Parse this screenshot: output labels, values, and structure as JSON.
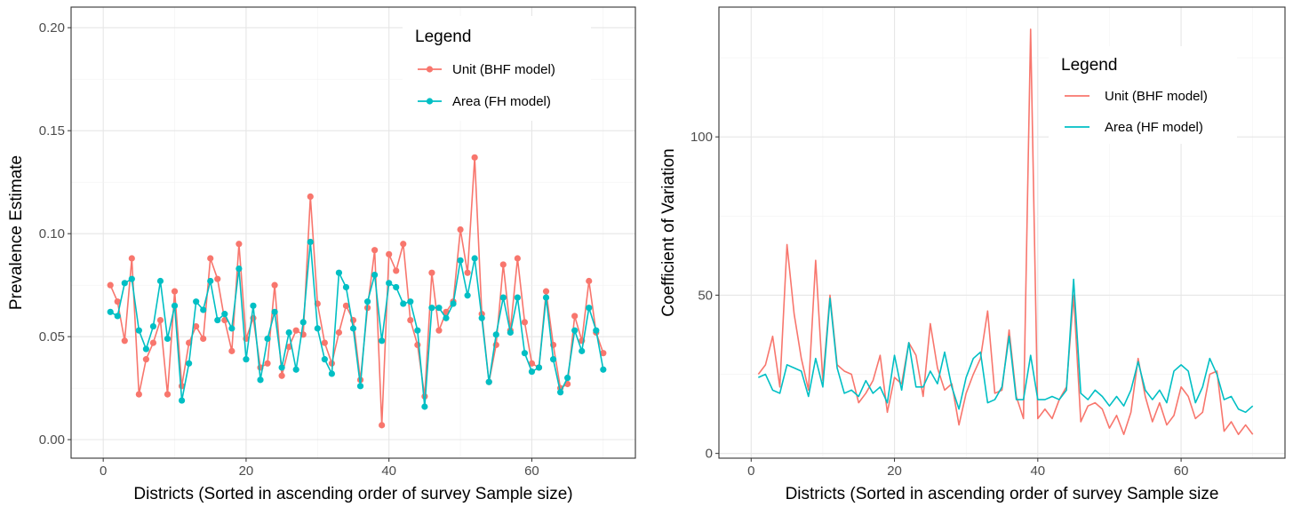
{
  "chart_data": [
    {
      "type": "line",
      "xlabel": "Districts (Sorted in ascending order of survey Sample size)",
      "ylabel": "Prevalence Estimate",
      "xlim": [
        -4.5,
        74.5
      ],
      "ylim": [
        -0.009,
        0.21
      ],
      "xticks": [
        0,
        20,
        40,
        60
      ],
      "xtick_labels": [
        "0",
        "20",
        "40",
        "60"
      ],
      "yticks": [
        0,
        0.05,
        0.1,
        0.15,
        0.2
      ],
      "ytick_labels": [
        "0.00",
        "0.05",
        "0.10",
        "0.15",
        "0.20"
      ],
      "grid": true,
      "markers": true,
      "legend": {
        "title": "Legend",
        "position": "top-right"
      },
      "x": [
        1,
        2,
        3,
        4,
        5,
        6,
        7,
        8,
        9,
        10,
        11,
        12,
        13,
        14,
        15,
        16,
        17,
        18,
        19,
        20,
        21,
        22,
        23,
        24,
        25,
        26,
        27,
        28,
        29,
        30,
        31,
        32,
        33,
        34,
        35,
        36,
        37,
        38,
        39,
        40,
        41,
        42,
        43,
        44,
        45,
        46,
        47,
        48,
        49,
        50,
        51,
        52,
        53,
        54,
        55,
        56,
        57,
        58,
        59,
        60,
        61,
        62,
        63,
        64,
        65,
        66,
        67,
        68,
        69,
        70
      ],
      "series": [
        {
          "name": "Unit (BHF model)",
          "color": "#F8766D",
          "values": [
            0.075,
            0.067,
            0.048,
            0.088,
            0.022,
            0.039,
            0.047,
            0.058,
            0.022,
            0.072,
            0.026,
            0.047,
            0.055,
            0.049,
            0.088,
            0.078,
            0.058,
            0.043,
            0.095,
            0.049,
            0.059,
            0.035,
            0.037,
            0.075,
            0.031,
            0.045,
            0.053,
            0.051,
            0.118,
            0.066,
            0.047,
            0.037,
            0.052,
            0.065,
            0.058,
            0.029,
            0.064,
            0.092,
            0.007,
            0.09,
            0.082,
            0.095,
            0.058,
            0.046,
            0.021,
            0.081,
            0.053,
            0.062,
            0.067,
            0.102,
            0.081,
            0.137,
            0.061,
            0.028,
            0.046,
            0.085,
            0.053,
            0.088,
            0.057,
            0.037,
            0.035,
            0.072,
            0.046,
            0.025,
            0.027,
            0.06,
            0.048,
            0.077,
            0.052,
            0.042
          ]
        },
        {
          "name": "Area (FH model)",
          "color": "#00BFC4",
          "values": [
            0.062,
            0.06,
            0.076,
            0.078,
            0.053,
            0.044,
            0.055,
            0.077,
            0.049,
            0.065,
            0.019,
            0.037,
            0.067,
            0.063,
            0.077,
            0.058,
            0.061,
            0.054,
            0.083,
            0.039,
            0.065,
            0.029,
            0.049,
            0.062,
            0.035,
            0.052,
            0.034,
            0.057,
            0.096,
            0.054,
            0.039,
            0.032,
            0.081,
            0.074,
            0.054,
            0.026,
            0.067,
            0.08,
            0.048,
            0.076,
            0.074,
            0.066,
            0.067,
            0.053,
            0.016,
            0.064,
            0.064,
            0.059,
            0.066,
            0.087,
            0.07,
            0.088,
            0.059,
            0.028,
            0.051,
            0.069,
            0.052,
            0.069,
            0.042,
            0.033,
            0.035,
            0.069,
            0.039,
            0.023,
            0.03,
            0.053,
            0.043,
            0.064,
            0.053,
            0.034
          ]
        }
      ]
    },
    {
      "type": "line",
      "xlabel": "Districts (Sorted in ascending order of survey Sample size",
      "ylabel": "Coefficient of Variation",
      "xlim": [
        -4.5,
        74.5
      ],
      "ylim": [
        -1.5,
        141
      ],
      "xticks": [
        0,
        20,
        40,
        60
      ],
      "xtick_labels": [
        "0",
        "20",
        "40",
        "60"
      ],
      "yticks": [
        0,
        50,
        100
      ],
      "ytick_labels": [
        "0",
        "50",
        "100"
      ],
      "grid": true,
      "markers": false,
      "legend": {
        "title": "Legend",
        "position": "top-right"
      },
      "x": [
        1,
        2,
        3,
        4,
        5,
        6,
        7,
        8,
        9,
        10,
        11,
        12,
        13,
        14,
        15,
        16,
        17,
        18,
        19,
        20,
        21,
        22,
        23,
        24,
        25,
        26,
        27,
        28,
        29,
        30,
        31,
        32,
        33,
        34,
        35,
        36,
        37,
        38,
        39,
        40,
        41,
        42,
        43,
        44,
        45,
        46,
        47,
        48,
        49,
        50,
        51,
        52,
        53,
        54,
        55,
        56,
        57,
        58,
        59,
        60,
        61,
        62,
        63,
        64,
        65,
        66,
        67,
        68,
        69,
        70
      ],
      "series": [
        {
          "name": "Unit (BHF model)",
          "color": "#F8766D",
          "values": [
            25,
            28,
            37,
            21,
            66,
            44,
            30,
            20,
            61,
            23,
            50,
            28,
            26,
            25,
            16,
            19,
            23,
            31,
            13,
            24,
            22,
            35,
            31,
            18,
            41,
            27,
            20,
            22,
            9,
            19,
            25,
            30,
            45,
            19,
            20,
            39,
            18,
            11,
            134,
            11,
            14,
            11,
            17,
            21,
            50,
            10,
            15,
            16,
            14,
            8,
            12,
            6,
            13,
            30,
            18,
            10,
            16,
            9,
            12,
            21,
            18,
            11,
            13,
            25,
            26,
            7,
            10,
            6,
            9,
            6
          ]
        },
        {
          "name": "Area (HF model)",
          "color": "#00BFC4",
          "values": [
            24,
            25,
            20,
            19,
            28,
            27,
            26,
            18,
            30,
            21,
            49,
            27,
            19,
            20,
            18,
            23,
            19,
            21,
            16,
            31,
            20,
            35,
            21,
            21,
            26,
            22,
            32,
            21,
            14,
            24,
            30,
            32,
            16,
            17,
            21,
            37,
            17,
            17,
            31,
            17,
            17,
            18,
            17,
            20,
            55,
            19,
            17,
            20,
            18,
            15,
            18,
            15,
            20,
            29,
            20,
            17,
            20,
            16,
            26,
            28,
            26,
            16,
            21,
            30,
            25,
            17,
            18,
            14,
            13,
            15
          ]
        }
      ]
    }
  ]
}
